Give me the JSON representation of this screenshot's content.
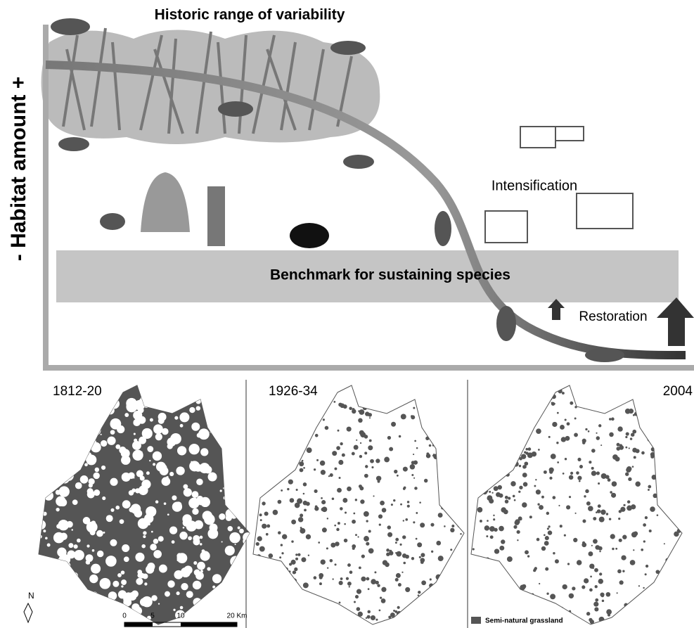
{
  "title": "Historic range of variability",
  "y_axis_label": "- Habitat amount +",
  "annotations": {
    "intensification": "Intensification",
    "benchmark": "Benchmark for sustaining species",
    "restoration": "Restoration"
  },
  "maps": [
    {
      "label": "1812-20"
    },
    {
      "label": "1926-34"
    },
    {
      "label": "2004"
    }
  ],
  "north_label": "N",
  "scale_bar": {
    "ticks": [
      "0",
      "5",
      "10",
      "20 Km"
    ]
  },
  "legend": "Semi-natural grassland"
}
